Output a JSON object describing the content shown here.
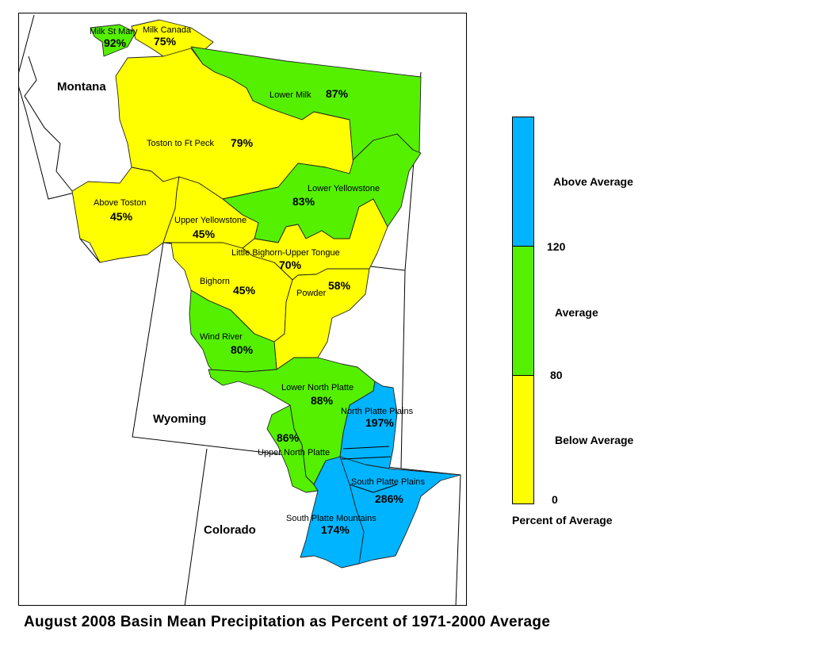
{
  "title": "August 2008 Basin Mean Precipitation as Percent of 1971-2000 Average",
  "colors": {
    "above": "#00b4ff",
    "average": "#55f000",
    "below": "#ffff00",
    "outside": "#ffffff",
    "outline": "#000000"
  },
  "states": {
    "montana": "Montana",
    "wyoming": "Wyoming",
    "colorado": "Colorado"
  },
  "basins": {
    "milk_st_mary": {
      "name": "Milk St Mary",
      "pct": "92%",
      "category": "average"
    },
    "milk_canada": {
      "name": "Milk Canada",
      "pct": "75%",
      "category": "below"
    },
    "lower_milk": {
      "name": "Lower Milk",
      "pct": "87%",
      "category": "average"
    },
    "toston_ft_peck": {
      "name": "Toston to Ft Peck",
      "pct": "79%",
      "category": "below"
    },
    "above_toston": {
      "name": "Above Toston",
      "pct": "45%",
      "category": "below"
    },
    "lower_yellowstone": {
      "name": "Lower Yellowstone",
      "pct": "83%",
      "category": "average"
    },
    "upper_yellowstone": {
      "name": "Upper Yellowstone",
      "pct": "45%",
      "category": "below"
    },
    "little_bighorn": {
      "name": "Little Bighorn-Upper Tongue",
      "pct": "70%",
      "category": "below"
    },
    "bighorn": {
      "name": "Bighorn",
      "pct": "45%",
      "category": "below"
    },
    "powder": {
      "name": "Powder",
      "pct": "58%",
      "category": "below"
    },
    "wind_river": {
      "name": "Wind River",
      "pct": "80%",
      "category": "average"
    },
    "lower_north_platte": {
      "name": "Lower North Platte",
      "pct": "88%",
      "category": "average"
    },
    "north_platte_plains": {
      "name": "North Platte Plains",
      "pct": "197%",
      "category": "above"
    },
    "upper_north_platte": {
      "name": "Upper North Platte",
      "pct": "86%",
      "category": "average"
    },
    "south_platte_plains": {
      "name": "South Platte Plains",
      "pct": "286%",
      "category": "above"
    },
    "south_platte_mountains": {
      "name": "South Platte Mountains",
      "pct": "174%",
      "category": "above"
    }
  },
  "legend": {
    "above_label": "Above Average",
    "average_label": "Average",
    "below_label": "Below Average",
    "break_high": "120",
    "break_low": "80",
    "min_label": "0",
    "caption": "Percent of Average"
  }
}
